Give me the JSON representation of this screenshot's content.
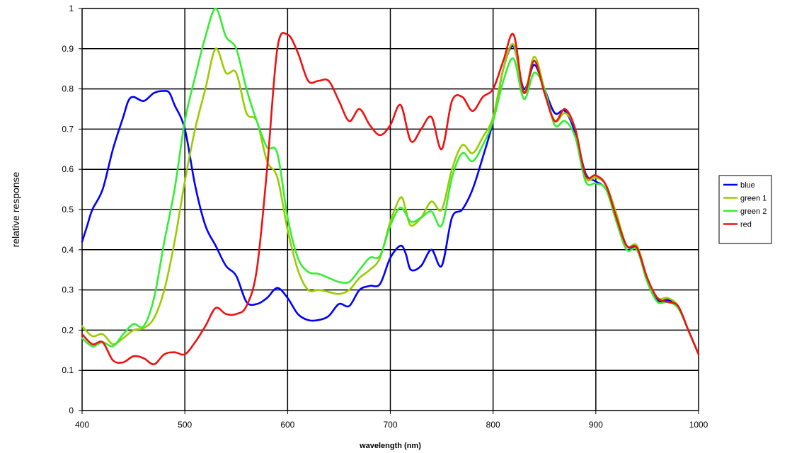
{
  "chart_data": {
    "type": "line",
    "title": "",
    "xlabel": "wavelength (nm)",
    "ylabel": "relative response",
    "xlim": [
      400,
      1000
    ],
    "ylim": [
      0,
      1
    ],
    "xticks": [
      400,
      500,
      600,
      700,
      800,
      900,
      1000
    ],
    "yticks": [
      0,
      0.1,
      0.2,
      0.3,
      0.4,
      0.5,
      0.6,
      0.7,
      0.8,
      0.9,
      1
    ],
    "grid": true,
    "legend_position": "right",
    "series": [
      {
        "name": "blue",
        "color": "#0000ff",
        "points": [
          [
            400,
            0.42
          ],
          [
            405,
            0.46
          ],
          [
            410,
            0.5
          ],
          [
            420,
            0.55
          ],
          [
            430,
            0.65
          ],
          [
            440,
            0.73
          ],
          [
            445,
            0.77
          ],
          [
            450,
            0.78
          ],
          [
            460,
            0.77
          ],
          [
            470,
            0.79
          ],
          [
            480,
            0.795
          ],
          [
            485,
            0.79
          ],
          [
            490,
            0.76
          ],
          [
            500,
            0.7
          ],
          [
            510,
            0.56
          ],
          [
            520,
            0.46
          ],
          [
            530,
            0.41
          ],
          [
            540,
            0.36
          ],
          [
            550,
            0.335
          ],
          [
            560,
            0.27
          ],
          [
            570,
            0.265
          ],
          [
            580,
            0.28
          ],
          [
            590,
            0.305
          ],
          [
            600,
            0.28
          ],
          [
            610,
            0.24
          ],
          [
            620,
            0.225
          ],
          [
            630,
            0.225
          ],
          [
            640,
            0.235
          ],
          [
            650,
            0.265
          ],
          [
            660,
            0.26
          ],
          [
            670,
            0.3
          ],
          [
            680,
            0.31
          ],
          [
            690,
            0.315
          ],
          [
            700,
            0.38
          ],
          [
            710,
            0.41
          ],
          [
            715,
            0.39
          ],
          [
            720,
            0.35
          ],
          [
            730,
            0.36
          ],
          [
            740,
            0.4
          ],
          [
            750,
            0.36
          ],
          [
            760,
            0.48
          ],
          [
            770,
            0.5
          ],
          [
            780,
            0.55
          ],
          [
            790,
            0.63
          ],
          [
            800,
            0.72
          ],
          [
            810,
            0.85
          ],
          [
            820,
            0.905
          ],
          [
            830,
            0.8
          ],
          [
            840,
            0.86
          ],
          [
            850,
            0.8
          ],
          [
            860,
            0.74
          ],
          [
            870,
            0.745
          ],
          [
            880,
            0.69
          ],
          [
            890,
            0.59
          ],
          [
            900,
            0.57
          ],
          [
            910,
            0.55
          ],
          [
            920,
            0.48
          ],
          [
            930,
            0.41
          ],
          [
            940,
            0.4
          ],
          [
            950,
            0.33
          ],
          [
            960,
            0.275
          ],
          [
            970,
            0.275
          ],
          [
            980,
            0.26
          ],
          [
            990,
            0.2
          ],
          [
            1000,
            0.14
          ]
        ]
      },
      {
        "name": "green 1",
        "color": "#99cc00",
        "points": [
          [
            400,
            0.21
          ],
          [
            410,
            0.185
          ],
          [
            420,
            0.19
          ],
          [
            430,
            0.165
          ],
          [
            440,
            0.18
          ],
          [
            450,
            0.2
          ],
          [
            460,
            0.205
          ],
          [
            470,
            0.23
          ],
          [
            480,
            0.3
          ],
          [
            490,
            0.42
          ],
          [
            500,
            0.57
          ],
          [
            510,
            0.7
          ],
          [
            520,
            0.8
          ],
          [
            530,
            0.9
          ],
          [
            540,
            0.84
          ],
          [
            550,
            0.84
          ],
          [
            560,
            0.74
          ],
          [
            570,
            0.72
          ],
          [
            580,
            0.62
          ],
          [
            590,
            0.58
          ],
          [
            600,
            0.45
          ],
          [
            610,
            0.35
          ],
          [
            620,
            0.3
          ],
          [
            630,
            0.3
          ],
          [
            640,
            0.295
          ],
          [
            650,
            0.29
          ],
          [
            660,
            0.3
          ],
          [
            670,
            0.33
          ],
          [
            680,
            0.35
          ],
          [
            690,
            0.38
          ],
          [
            700,
            0.47
          ],
          [
            710,
            0.53
          ],
          [
            715,
            0.5
          ],
          [
            720,
            0.46
          ],
          [
            730,
            0.48
          ],
          [
            740,
            0.52
          ],
          [
            750,
            0.5
          ],
          [
            760,
            0.6
          ],
          [
            770,
            0.66
          ],
          [
            780,
            0.64
          ],
          [
            790,
            0.68
          ],
          [
            800,
            0.73
          ],
          [
            810,
            0.85
          ],
          [
            820,
            0.91
          ],
          [
            830,
            0.79
          ],
          [
            840,
            0.88
          ],
          [
            850,
            0.8
          ],
          [
            860,
            0.72
          ],
          [
            870,
            0.74
          ],
          [
            880,
            0.7
          ],
          [
            890,
            0.58
          ],
          [
            900,
            0.58
          ],
          [
            910,
            0.56
          ],
          [
            920,
            0.49
          ],
          [
            930,
            0.41
          ],
          [
            940,
            0.41
          ],
          [
            950,
            0.33
          ],
          [
            960,
            0.28
          ],
          [
            970,
            0.28
          ],
          [
            980,
            0.26
          ],
          [
            990,
            0.2
          ],
          [
            1000,
            0.14
          ]
        ]
      },
      {
        "name": "green 2",
        "color": "#33ee33",
        "points": [
          [
            400,
            0.18
          ],
          [
            410,
            0.16
          ],
          [
            420,
            0.17
          ],
          [
            430,
            0.16
          ],
          [
            440,
            0.19
          ],
          [
            450,
            0.215
          ],
          [
            460,
            0.21
          ],
          [
            470,
            0.28
          ],
          [
            480,
            0.42
          ],
          [
            490,
            0.55
          ],
          [
            500,
            0.72
          ],
          [
            510,
            0.83
          ],
          [
            520,
            0.93
          ],
          [
            530,
            1.0
          ],
          [
            540,
            0.93
          ],
          [
            550,
            0.9
          ],
          [
            560,
            0.8
          ],
          [
            570,
            0.72
          ],
          [
            580,
            0.655
          ],
          [
            590,
            0.64
          ],
          [
            600,
            0.48
          ],
          [
            610,
            0.38
          ],
          [
            620,
            0.345
          ],
          [
            630,
            0.34
          ],
          [
            640,
            0.33
          ],
          [
            650,
            0.32
          ],
          [
            660,
            0.32
          ],
          [
            670,
            0.35
          ],
          [
            680,
            0.38
          ],
          [
            690,
            0.385
          ],
          [
            700,
            0.46
          ],
          [
            710,
            0.505
          ],
          [
            720,
            0.47
          ],
          [
            730,
            0.48
          ],
          [
            740,
            0.495
          ],
          [
            750,
            0.46
          ],
          [
            760,
            0.58
          ],
          [
            770,
            0.64
          ],
          [
            780,
            0.62
          ],
          [
            790,
            0.66
          ],
          [
            800,
            0.72
          ],
          [
            810,
            0.82
          ],
          [
            820,
            0.875
          ],
          [
            830,
            0.775
          ],
          [
            840,
            0.84
          ],
          [
            850,
            0.8
          ],
          [
            860,
            0.71
          ],
          [
            870,
            0.72
          ],
          [
            880,
            0.68
          ],
          [
            890,
            0.57
          ],
          [
            900,
            0.565
          ],
          [
            910,
            0.55
          ],
          [
            920,
            0.47
          ],
          [
            930,
            0.4
          ],
          [
            940,
            0.4
          ],
          [
            950,
            0.32
          ],
          [
            960,
            0.27
          ],
          [
            970,
            0.27
          ],
          [
            980,
            0.255
          ],
          [
            990,
            0.2
          ],
          [
            1000,
            0.14
          ]
        ]
      },
      {
        "name": "red",
        "color": "#ee1111",
        "points": [
          [
            400,
            0.19
          ],
          [
            410,
            0.165
          ],
          [
            420,
            0.17
          ],
          [
            430,
            0.125
          ],
          [
            440,
            0.12
          ],
          [
            450,
            0.135
          ],
          [
            460,
            0.13
          ],
          [
            470,
            0.115
          ],
          [
            480,
            0.14
          ],
          [
            490,
            0.145
          ],
          [
            500,
            0.14
          ],
          [
            510,
            0.17
          ],
          [
            520,
            0.21
          ],
          [
            530,
            0.255
          ],
          [
            540,
            0.24
          ],
          [
            550,
            0.24
          ],
          [
            560,
            0.26
          ],
          [
            570,
            0.35
          ],
          [
            580,
            0.6
          ],
          [
            590,
            0.9
          ],
          [
            600,
            0.935
          ],
          [
            610,
            0.89
          ],
          [
            620,
            0.82
          ],
          [
            630,
            0.82
          ],
          [
            640,
            0.82
          ],
          [
            650,
            0.77
          ],
          [
            660,
            0.72
          ],
          [
            670,
            0.75
          ],
          [
            680,
            0.71
          ],
          [
            690,
            0.685
          ],
          [
            700,
            0.71
          ],
          [
            710,
            0.76
          ],
          [
            720,
            0.67
          ],
          [
            730,
            0.7
          ],
          [
            740,
            0.73
          ],
          [
            750,
            0.65
          ],
          [
            760,
            0.77
          ],
          [
            770,
            0.78
          ],
          [
            780,
            0.745
          ],
          [
            790,
            0.78
          ],
          [
            800,
            0.8
          ],
          [
            810,
            0.87
          ],
          [
            820,
            0.935
          ],
          [
            830,
            0.79
          ],
          [
            840,
            0.87
          ],
          [
            850,
            0.79
          ],
          [
            860,
            0.72
          ],
          [
            870,
            0.75
          ],
          [
            880,
            0.7
          ],
          [
            890,
            0.585
          ],
          [
            900,
            0.585
          ],
          [
            910,
            0.56
          ],
          [
            920,
            0.48
          ],
          [
            930,
            0.41
          ],
          [
            940,
            0.405
          ],
          [
            950,
            0.33
          ],
          [
            960,
            0.28
          ],
          [
            970,
            0.27
          ],
          [
            980,
            0.26
          ],
          [
            990,
            0.2
          ],
          [
            1000,
            0.14
          ]
        ]
      }
    ]
  }
}
